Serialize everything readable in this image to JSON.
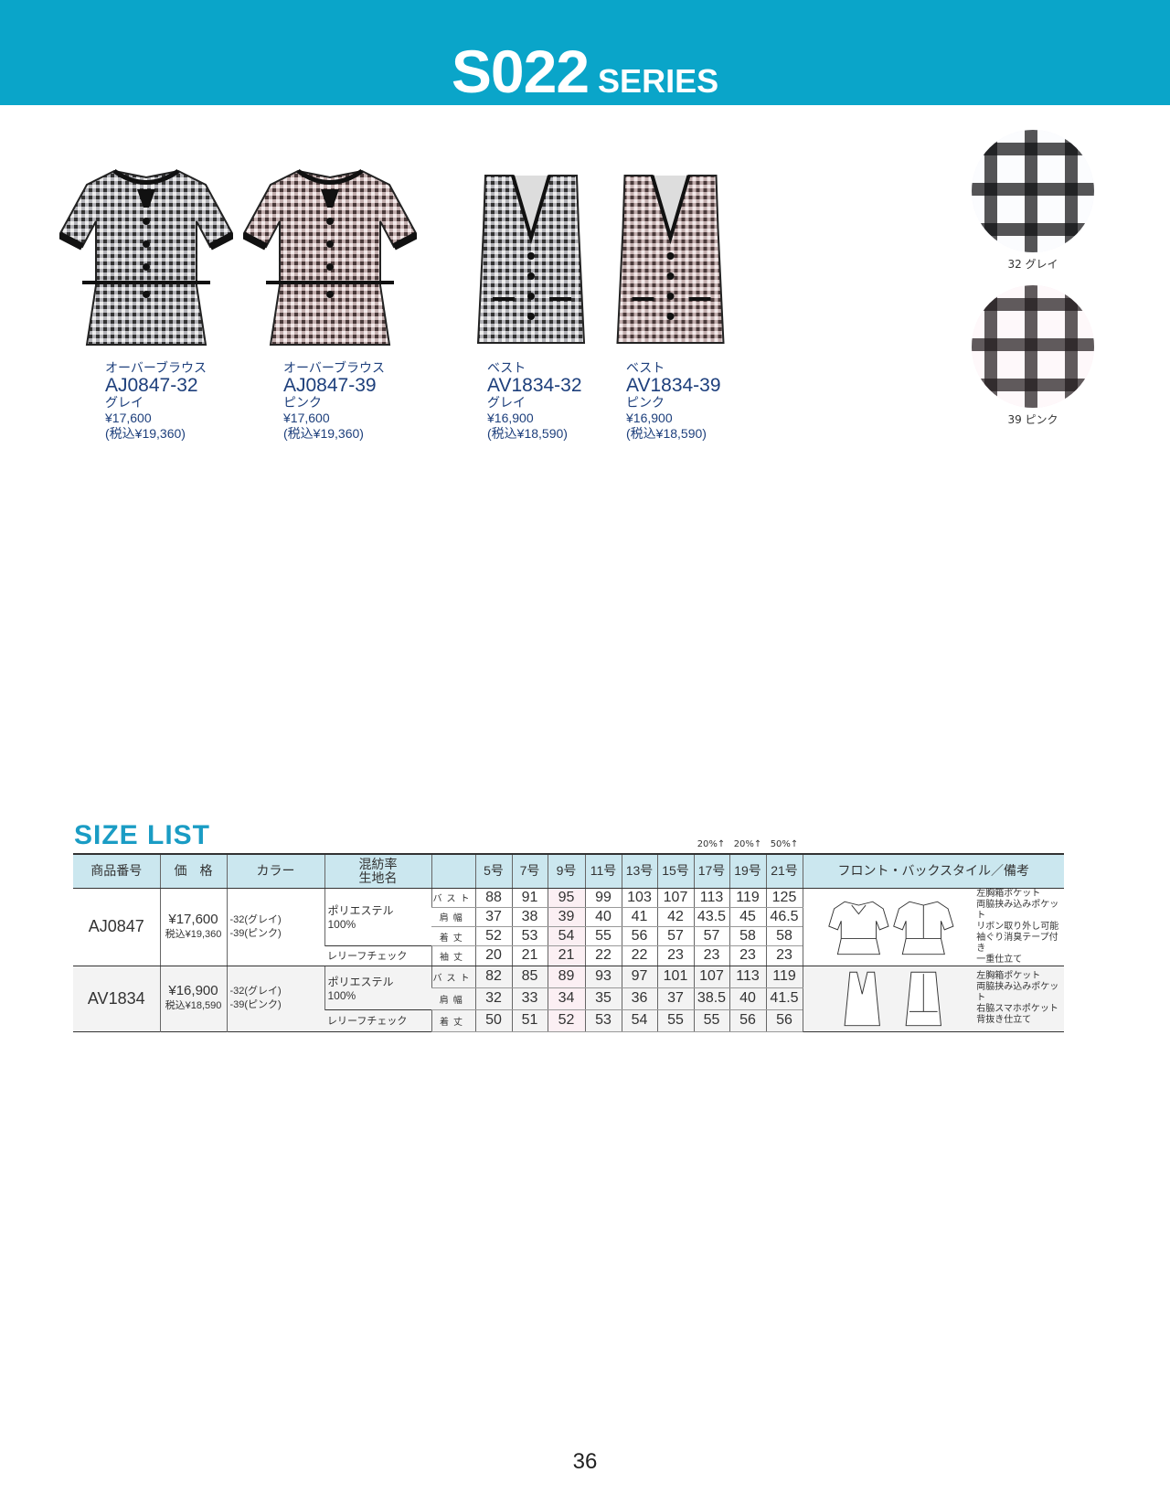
{
  "header": {
    "title": "S022",
    "subtitle": "SERIES",
    "band_color": "#0aa5c9"
  },
  "products": [
    {
      "type": "オーバーブラウス",
      "code": "AJ0847-32",
      "color": "グレイ",
      "price": "¥17,600",
      "price_tax": "(税込¥19,360)"
    },
    {
      "type": "オーバーブラウス",
      "code": "AJ0847-39",
      "color": "ピンク",
      "price": "¥17,600",
      "price_tax": "(税込¥19,360)"
    },
    {
      "type": "ベスト",
      "code": "AV1834-32",
      "color": "グレイ",
      "price": "¥16,900",
      "price_tax": "(税込¥18,590)"
    },
    {
      "type": "ベスト",
      "code": "AV1834-39",
      "color": "ピンク",
      "price": "¥16,900",
      "price_tax": "(税込¥18,590)"
    }
  ],
  "swatches": [
    {
      "label": "32 グレイ",
      "tint": "#e6e8f6"
    },
    {
      "label": "39 ピンク",
      "tint": "#f8dbe6"
    }
  ],
  "size_list": {
    "title": "SIZE LIST",
    "surcharges": [
      "20%↑",
      "20%↑",
      "50%↑"
    ],
    "headers": {
      "code": "商品番号",
      "price": "価　格",
      "color": "カラー",
      "fabric": "混紡率\n生地名",
      "sizes": [
        "5号",
        "7号",
        "9号",
        "11号",
        "13号",
        "15号",
        "17号",
        "19号",
        "21号"
      ],
      "style": "フロント・バックスタイル／備考"
    },
    "rows": [
      {
        "code": "AJ0847",
        "price": "¥17,600",
        "price_tax": "税込¥19,360",
        "colors": [
          "-32(グレイ)",
          "-39(ピンク)"
        ],
        "fabric_mix": "ポリエステル　100%",
        "fabric_name": "レリーフチェック",
        "measures": [
          {
            "name": "バスト",
            "values": [
              "88",
              "91",
              "95",
              "99",
              "103",
              "107",
              "113",
              "119",
              "125"
            ]
          },
          {
            "name": "肩幅",
            "values": [
              "37",
              "38",
              "39",
              "40",
              "41",
              "42",
              "43.5",
              "45",
              "46.5"
            ]
          },
          {
            "name": "着丈",
            "values": [
              "52",
              "53",
              "54",
              "55",
              "56",
              "57",
              "57",
              "58",
              "58"
            ]
          },
          {
            "name": "袖丈",
            "values": [
              "20",
              "21",
              "21",
              "22",
              "22",
              "23",
              "23",
              "23",
              "23"
            ]
          }
        ],
        "notes": [
          "左胸箱ポケット",
          "両脇挟み込みポケット",
          "リボン取り外し可能",
          "袖ぐり消臭テープ付き",
          "一重仕立て"
        ]
      },
      {
        "code": "AV1834",
        "price": "¥16,900",
        "price_tax": "税込¥18,590",
        "colors": [
          "-32(グレイ)",
          "-39(ピンク)"
        ],
        "fabric_mix": "ポリエステル　100%",
        "fabric_name": "レリーフチェック",
        "measures": [
          {
            "name": "バスト",
            "values": [
              "82",
              "85",
              "89",
              "93",
              "97",
              "101",
              "107",
              "113",
              "119"
            ]
          },
          {
            "name": "肩幅",
            "values": [
              "32",
              "33",
              "34",
              "35",
              "36",
              "37",
              "38.5",
              "40",
              "41.5"
            ]
          },
          {
            "name": "着丈",
            "values": [
              "50",
              "51",
              "52",
              "53",
              "54",
              "55",
              "55",
              "56",
              "56"
            ]
          }
        ],
        "notes": [
          "左胸箱ポケット",
          "両脇挟み込みポケット",
          "右脇スマホポケット",
          "背抜き仕立て"
        ]
      }
    ]
  },
  "page_number": "36"
}
